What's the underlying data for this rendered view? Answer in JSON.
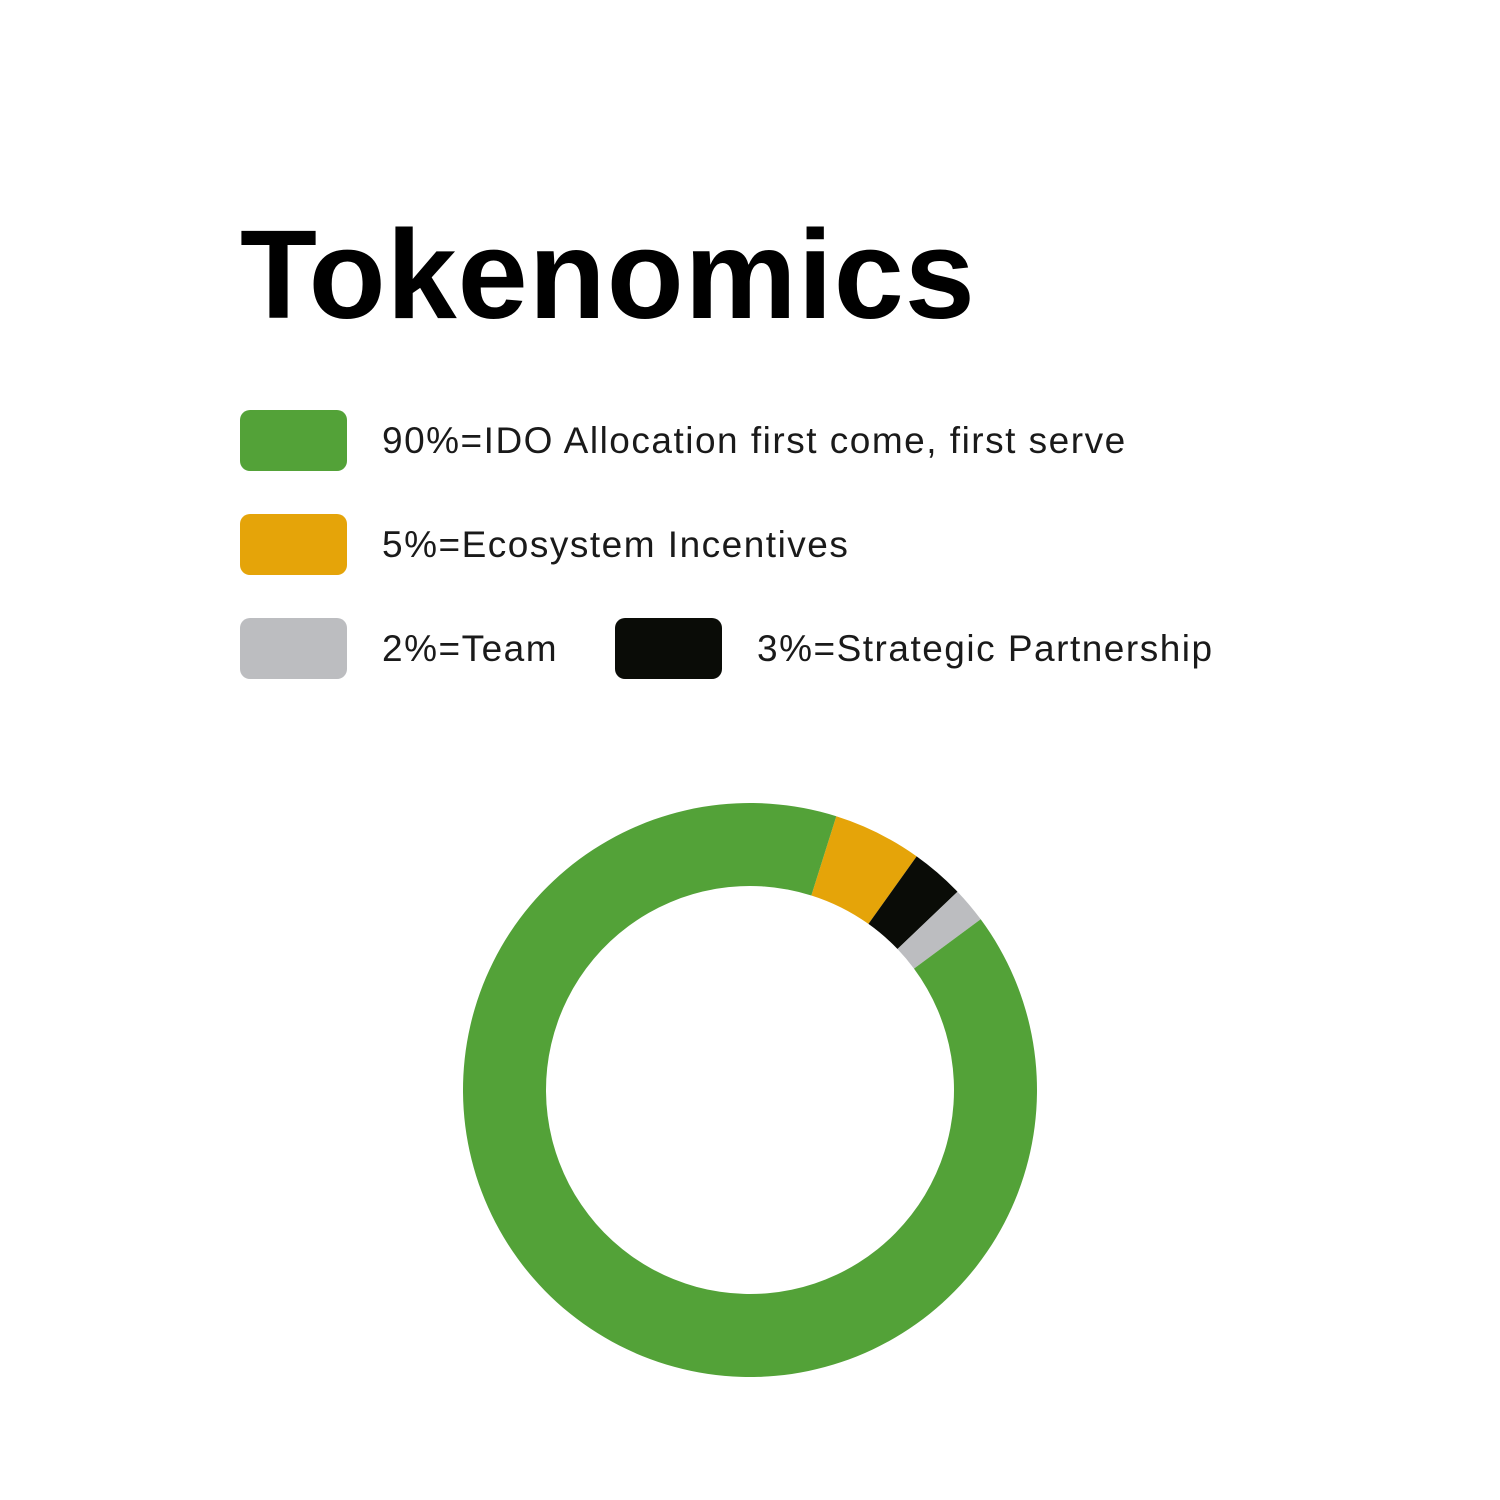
{
  "chart_data": {
    "type": "pie",
    "title": "Tokenomics",
    "legend": [
      {
        "label": "90%=IDO Allocation first come, first serve",
        "color": "#53a238"
      },
      {
        "label": "5%=Ecosystem Incentives",
        "color": "#e5a409"
      },
      {
        "label": "2%=Team",
        "color": "#bcbdc0"
      },
      {
        "label": "3%=Strategic Partnership",
        "color": "#0a0c07"
      }
    ],
    "slices": [
      {
        "value": 5,
        "color": "#e5a409"
      },
      {
        "value": 3,
        "color": "#0a0c07"
      },
      {
        "value": 2,
        "color": "#bcbdc0"
      },
      {
        "value": 90,
        "color": "#53a238"
      }
    ],
    "start_angle_deg": 17.5,
    "direction": "clockwise",
    "donut": true
  }
}
